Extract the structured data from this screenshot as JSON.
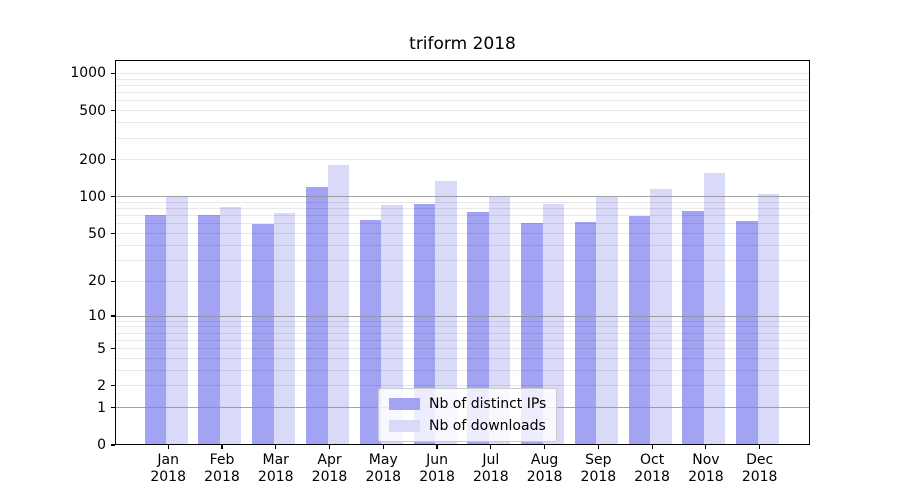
{
  "chart_data": {
    "type": "bar",
    "title": "triform 2018",
    "categories": [
      "Jan 2018",
      "Feb 2018",
      "Mar 2018",
      "Apr 2018",
      "May 2018",
      "Jun 2018",
      "Jul 2018",
      "Aug 2018",
      "Sep 2018",
      "Oct 2018",
      "Nov 2018",
      "Dec 2018"
    ],
    "series": [
      {
        "name": "Nb of distinct IPs",
        "color": "#a3a3f3",
        "values": [
          71,
          71,
          60,
          120,
          64,
          88,
          75,
          61,
          62,
          69,
          76,
          63
        ]
      },
      {
        "name": "Nb of downloads",
        "color": "#d9d9f8",
        "values": [
          101,
          82,
          73,
          180,
          85,
          135,
          100,
          87,
          100,
          116,
          155,
          105
        ]
      }
    ],
    "xlabel": "",
    "ylabel": "",
    "yscale": "log1p",
    "ylim": [
      0,
      1283
    ],
    "yticks": [
      0,
      1,
      2,
      5,
      10,
      20,
      50,
      100,
      200,
      500,
      1000
    ],
    "grid": true,
    "legend_position": "lower center"
  },
  "legend": {
    "items": [
      "Nb of distinct IPs",
      "Nb of downloads"
    ]
  },
  "colors": {
    "bar_ips": "#a3a3f3",
    "bar_downloads": "#d9d9f8",
    "grid_major": "#b0b0b0",
    "grid_minor": "#e8e8e8",
    "spine": "#000000",
    "legend_border": "#cccccc",
    "legend_background": "rgba(255,255,255,0.8)",
    "text": "#000000"
  }
}
